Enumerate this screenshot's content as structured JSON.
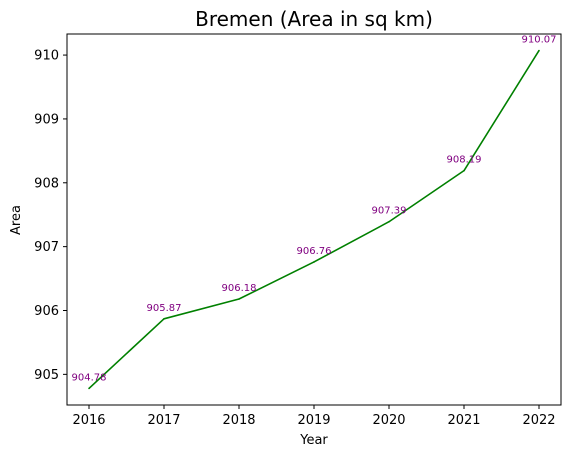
{
  "chart_data": {
    "type": "line",
    "title": "Bremen (Area in sq km)",
    "xlabel": "Year",
    "ylabel": "Area",
    "x": [
      "2016",
      "2017",
      "2018",
      "2019",
      "2020",
      "2021",
      "2022"
    ],
    "series": [
      {
        "values": [
          904.78,
          905.87,
          906.18,
          906.76,
          907.39,
          908.19,
          910.07
        ],
        "color": "#008000"
      }
    ],
    "data_labels": [
      "904.78",
      "905.87",
      "906.18",
      "906.76",
      "907.39",
      "908.19",
      "910.07"
    ],
    "data_label_color": "#800080",
    "yticks": [
      "905",
      "906",
      "907",
      "908",
      "909",
      "910"
    ],
    "ylim": [
      904.52,
      910.33
    ],
    "grid": false,
    "legend": "none"
  }
}
